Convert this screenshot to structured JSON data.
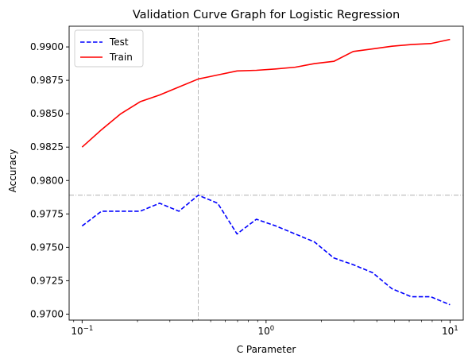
{
  "chart_data": {
    "type": "line",
    "title": "Validation Curve Graph for Logistic Regression",
    "xlabel": "C Parameter",
    "ylabel": "Accuracy",
    "xscale": "log",
    "xlim": [
      0.085,
      11.8
    ],
    "ylim": [
      0.96955,
      0.99155
    ],
    "grid": false,
    "legend_position": "top-left",
    "x_ticks": [
      {
        "value": 0.1,
        "base": "10",
        "exp": "−1"
      },
      {
        "value": 1,
        "base": "10",
        "exp": "0"
      },
      {
        "value": 10,
        "base": "10",
        "exp": "1"
      }
    ],
    "y_ticks": [
      {
        "value": 0.97,
        "label": "0.9700"
      },
      {
        "value": 0.9725,
        "label": "0.9725"
      },
      {
        "value": 0.975,
        "label": "0.9750"
      },
      {
        "value": 0.9775,
        "label": "0.9775"
      },
      {
        "value": 0.98,
        "label": "0.9800"
      },
      {
        "value": 0.9825,
        "label": "0.9825"
      },
      {
        "value": 0.985,
        "label": "0.9850"
      },
      {
        "value": 0.9875,
        "label": "0.9875"
      },
      {
        "value": 0.99,
        "label": "0.9900"
      }
    ],
    "x": [
      0.1,
      0.1274,
      0.1624,
      0.2069,
      0.2637,
      0.336,
      0.4281,
      0.5456,
      0.6952,
      0.8859,
      1.1288,
      1.4384,
      1.833,
      2.3357,
      2.9764,
      3.7927,
      4.8329,
      6.1585,
      7.8476,
      10.0
    ],
    "series": [
      {
        "name": "Test",
        "color": "#0000ff",
        "linestyle": "dashed",
        "values": [
          0.9766,
          0.9777,
          0.9777,
          0.9777,
          0.9783,
          0.9777,
          0.9789,
          0.9783,
          0.976,
          0.9771,
          0.9766,
          0.976,
          0.9754,
          0.9742,
          0.9737,
          0.9731,
          0.9719,
          0.9713,
          0.9713,
          0.9707
        ]
      },
      {
        "name": "Train",
        "color": "#ff0000",
        "linestyle": "solid",
        "values": [
          0.9825,
          0.9838,
          0.985,
          0.9859,
          0.9864,
          0.987,
          0.9876,
          0.9879,
          0.9882,
          0.98825,
          0.98835,
          0.98848,
          0.98875,
          0.98892,
          0.98966,
          0.98985,
          0.99005,
          0.99018,
          0.99025,
          0.99056
        ]
      }
    ],
    "reference_lines": [
      {
        "orientation": "vertical",
        "value": 0.4281,
        "color": "#b0b0b0",
        "linestyle": "dashed"
      },
      {
        "orientation": "horizontal",
        "value": 0.9789,
        "color": "#b0b0b0",
        "linestyle": "dashdot"
      }
    ]
  }
}
